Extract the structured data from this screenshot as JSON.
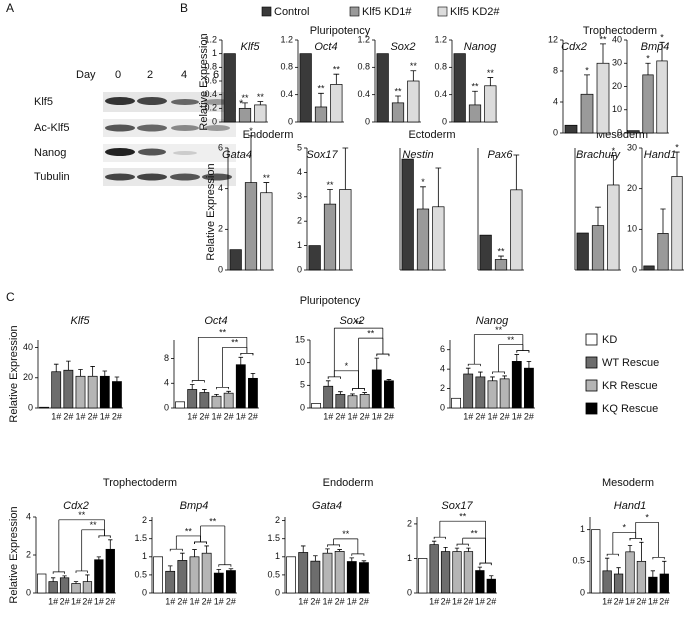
{
  "panel_letters": [
    "A",
    "B",
    "C"
  ],
  "western_blot": {
    "day_label": "Day",
    "days": [
      "0",
      "2",
      "4",
      "6"
    ],
    "rows": [
      "Klf5",
      "Ac-Klf5",
      "Nanog",
      "Tubulin"
    ],
    "star": "*"
  },
  "panel_b": {
    "headings": [
      "Pluripotency",
      "Trophectoderm",
      "Endoderm",
      "Ectoderm",
      "Mesoderm"
    ],
    "ylabel": "Relative Expression",
    "legend": [
      {
        "name": "Control",
        "color": "#3a3a3a"
      },
      {
        "name": "Klf5 KD1#",
        "color": "#9a9a9a"
      },
      {
        "name": "Klf5 KD2#",
        "color": "#dcdcdc"
      }
    ]
  },
  "panel_c": {
    "headings": [
      "Pluripotency",
      "Trophectoderm",
      "Endoderm",
      "Mesoderm"
    ],
    "ylabel": "Relative Expression",
    "legend": [
      {
        "name": "KD",
        "color": "#ffffff"
      },
      {
        "name": "WT Rescue",
        "color": "#6d6d6d"
      },
      {
        "name": "KR Rescue",
        "color": "#b5b5b5"
      },
      {
        "name": "KQ Rescue",
        "color": "#000000"
      }
    ]
  },
  "chart_data": [
    {
      "type": "bar",
      "title": "Klf5",
      "values": [
        1,
        0.2,
        0.25
      ],
      "errors": [
        0,
        0.08,
        0.05
      ],
      "significance": [
        null,
        "**",
        "**"
      ],
      "colors": [
        "#3a3a3a",
        "#9a9a9a",
        "#dcdcdc"
      ],
      "ylim": [
        0,
        1.2
      ],
      "yticks": [
        0,
        0.2,
        0.4,
        0.6,
        0.8,
        1,
        1.2
      ]
    },
    {
      "type": "bar",
      "title": "Oct4",
      "values": [
        1,
        0.22,
        0.55
      ],
      "errors": [
        0,
        0.2,
        0.15
      ],
      "significance": [
        null,
        "**",
        "**"
      ],
      "colors": [
        "#3a3a3a",
        "#9a9a9a",
        "#dcdcdc"
      ],
      "ylim": [
        0,
        1.2
      ],
      "yticks": [
        0,
        0.4,
        0.8,
        1.2
      ]
    },
    {
      "type": "bar",
      "title": "Sox2",
      "values": [
        1,
        0.28,
        0.6
      ],
      "errors": [
        0,
        0.1,
        0.15
      ],
      "significance": [
        null,
        "**",
        "**"
      ],
      "colors": [
        "#3a3a3a",
        "#9a9a9a",
        "#dcdcdc"
      ],
      "ylim": [
        0,
        1.2
      ],
      "yticks": [
        0,
        0.4,
        0.8,
        1.2
      ]
    },
    {
      "type": "bar",
      "title": "Nanog",
      "values": [
        1,
        0.25,
        0.53
      ],
      "errors": [
        0,
        0.2,
        0.12
      ],
      "significance": [
        null,
        "**",
        "**"
      ],
      "colors": [
        "#3a3a3a",
        "#9a9a9a",
        "#dcdcdc"
      ],
      "ylim": [
        0,
        1.2
      ],
      "yticks": [
        0,
        0.4,
        0.8,
        1.2
      ]
    },
    {
      "type": "bar",
      "title": "Cdx2",
      "values": [
        1,
        5,
        9
      ],
      "errors": [
        0,
        2.5,
        2.5
      ],
      "significance": [
        null,
        "*",
        "**"
      ],
      "colors": [
        "#3a3a3a",
        "#9a9a9a",
        "#dcdcdc"
      ],
      "ylim": [
        0,
        12
      ],
      "yticks": [
        0,
        4,
        8,
        12
      ]
    },
    {
      "type": "bar",
      "title": "Bmp4",
      "values": [
        1,
        25,
        31
      ],
      "errors": [
        0,
        5,
        8
      ],
      "significance": [
        null,
        "*",
        "*"
      ],
      "colors": [
        "#3a3a3a",
        "#9a9a9a",
        "#dcdcdc"
      ],
      "ylim": [
        0,
        40
      ],
      "yticks": [
        0,
        10,
        20,
        30,
        40
      ]
    },
    {
      "type": "bar",
      "title": "Gata4",
      "values": [
        1,
        4.3,
        3.8
      ],
      "errors": [
        0,
        2.3,
        0.5
      ],
      "significance": [
        null,
        "*",
        "**"
      ],
      "colors": [
        "#3a3a3a",
        "#9a9a9a",
        "#dcdcdc"
      ],
      "ylim": [
        0,
        6
      ],
      "yticks": [
        0,
        2,
        4,
        6
      ]
    },
    {
      "type": "bar",
      "title": "Sox17",
      "values": [
        1,
        2.7,
        3.3
      ],
      "errors": [
        0,
        0.6,
        1.7
      ],
      "significance": [
        null,
        "**",
        null
      ],
      "colors": [
        "#3a3a3a",
        "#9a9a9a",
        "#dcdcdc"
      ],
      "ylim": [
        0,
        5
      ],
      "yticks": [
        0,
        1,
        2,
        3,
        4,
        5
      ]
    },
    {
      "type": "bar",
      "title": "Nestin",
      "values": [
        1,
        0.55,
        0.57
      ],
      "errors": [
        0,
        0.2,
        0.35
      ],
      "significance": [
        null,
        "*",
        null
      ],
      "colors": [
        "#3a3a3a",
        "#9a9a9a",
        "#dcdcdc"
      ],
      "ylim": [
        0,
        1.1
      ]
    },
    {
      "type": "bar",
      "title": "Pax6",
      "values": [
        1,
        0.3,
        2.3
      ],
      "errors": [
        0,
        0.1,
        1
      ],
      "significance": [
        null,
        "**",
        null
      ],
      "colors": [
        "#3a3a3a",
        "#9a9a9a",
        "#dcdcdc"
      ],
      "ylim": [
        0,
        3.5
      ]
    },
    {
      "type": "bar",
      "title": "Brachury",
      "values": [
        1,
        1.2,
        2.3
      ],
      "errors": [
        0,
        0.5,
        0.8
      ],
      "significance": [
        null,
        null,
        "*"
      ],
      "colors": [
        "#3a3a3a",
        "#9a9a9a",
        "#dcdcdc"
      ],
      "ylim": [
        0,
        3.3
      ]
    },
    {
      "type": "bar",
      "title": "Hand1",
      "values": [
        1,
        9,
        23
      ],
      "errors": [
        0,
        6,
        6
      ],
      "significance": [
        null,
        null,
        "*"
      ],
      "colors": [
        "#3a3a3a",
        "#9a9a9a",
        "#dcdcdc"
      ],
      "ylim": [
        0,
        30
      ],
      "yticks": [
        0,
        10,
        20,
        30
      ]
    },
    {
      "type": "bar",
      "title": "Klf5",
      "categories": [
        null,
        "1#",
        "2#",
        "1#",
        "2#",
        "1#",
        "2#"
      ],
      "values": [
        0.5,
        24,
        25,
        21,
        21,
        21,
        17.5
      ],
      "errors": [
        0,
        5,
        6,
        4.5,
        6.5,
        3.5,
        3
      ],
      "colors": [
        "#ffffff",
        "#6d6d6d",
        "#6d6d6d",
        "#b5b5b5",
        "#b5b5b5",
        "#000000",
        "#000000"
      ],
      "ylim": [
        0,
        45
      ],
      "yticks": [
        0,
        20,
        40
      ]
    },
    {
      "type": "bar",
      "title": "Oct4",
      "categories": [
        null,
        "1#",
        "2#",
        "1#",
        "2#",
        "1#",
        "2#"
      ],
      "values": [
        1,
        3,
        2.5,
        1.9,
        2.4,
        7,
        4.8
      ],
      "errors": [
        0,
        0.8,
        0.5,
        0.3,
        0.3,
        1.2,
        0.8
      ],
      "colors": [
        "#ffffff",
        "#6d6d6d",
        "#6d6d6d",
        "#b5b5b5",
        "#b5b5b5",
        "#000000",
        "#000000"
      ],
      "ylim": [
        0,
        11
      ],
      "yticks": [
        0,
        4,
        8
      ],
      "brackets": [
        {
          "groups": [
            2,
            3
          ],
          "label": "**"
        },
        {
          "groups": [
            1,
            3
          ],
          "label": "**"
        }
      ]
    },
    {
      "type": "bar",
      "title": "Sox2",
      "categories": [
        null,
        "1#",
        "2#",
        "1#",
        "2#",
        "1#",
        "2#"
      ],
      "values": [
        1,
        4.8,
        3,
        2.7,
        3,
        8.4,
        6
      ],
      "errors": [
        0,
        1.2,
        0.6,
        0.4,
        0.4,
        2.6,
        0.3
      ],
      "colors": [
        "#ffffff",
        "#6d6d6d",
        "#6d6d6d",
        "#b5b5b5",
        "#b5b5b5",
        "#000000",
        "#000000"
      ],
      "ylim": [
        0,
        15
      ],
      "yticks": [
        0,
        5,
        10,
        15
      ],
      "brackets": [
        {
          "groups": [
            1,
            2
          ],
          "label": "*"
        },
        {
          "groups": [
            2,
            3
          ],
          "label": "**"
        },
        {
          "groups": [
            1,
            3
          ],
          "label": "**"
        }
      ]
    },
    {
      "type": "bar",
      "title": "Nanog",
      "categories": [
        null,
        "1#",
        "2#",
        "1#",
        "2#",
        "1#",
        "2#"
      ],
      "values": [
        1,
        3.5,
        3.2,
        2.8,
        3,
        4.8,
        4.1
      ],
      "errors": [
        0,
        0.6,
        0.5,
        0.4,
        0.3,
        0.7,
        0.7
      ],
      "colors": [
        "#ffffff",
        "#6d6d6d",
        "#6d6d6d",
        "#b5b5b5",
        "#b5b5b5",
        "#000000",
        "#000000"
      ],
      "ylim": [
        0,
        7
      ],
      "yticks": [
        0,
        2,
        4,
        6
      ],
      "brackets": [
        {
          "groups": [
            2,
            3
          ],
          "label": "**"
        },
        {
          "groups": [
            1,
            3
          ],
          "label": "**"
        }
      ]
    },
    {
      "type": "bar",
      "title": "Cdx2",
      "categories": [
        null,
        "1#",
        "2#",
        "1#",
        "2#",
        "1#",
        "2#"
      ],
      "values": [
        1,
        0.6,
        0.8,
        0.5,
        0.6,
        1.75,
        2.3
      ],
      "errors": [
        0,
        0.2,
        0.1,
        0.1,
        0.35,
        0.15,
        0.5
      ],
      "colors": [
        "#ffffff",
        "#6d6d6d",
        "#6d6d6d",
        "#b5b5b5",
        "#b5b5b5",
        "#000000",
        "#000000"
      ],
      "ylim": [
        0,
        4
      ],
      "yticks": [
        0,
        2,
        4
      ],
      "brackets": [
        {
          "groups": [
            2,
            3
          ],
          "label": "**"
        },
        {
          "groups": [
            1,
            3
          ],
          "label": "**"
        }
      ]
    },
    {
      "type": "bar",
      "title": "Bmp4",
      "categories": [
        null,
        "1#",
        "2#",
        "1#",
        "2#",
        "1#",
        "2#"
      ],
      "values": [
        1,
        0.6,
        0.9,
        1,
        1.1,
        0.55,
        0.62
      ],
      "errors": [
        0,
        0.15,
        0.2,
        0.2,
        0.2,
        0.1,
        0.05
      ],
      "colors": [
        "#ffffff",
        "#6d6d6d",
        "#6d6d6d",
        "#b5b5b5",
        "#b5b5b5",
        "#000000",
        "#000000"
      ],
      "ylim": [
        0,
        2.1
      ],
      "yticks": [
        0,
        0.5,
        1,
        1.5,
        2
      ],
      "brackets": [
        {
          "groups": [
            1,
            2
          ],
          "label": "**"
        },
        {
          "groups": [
            2,
            3
          ],
          "label": "**"
        }
      ]
    },
    {
      "type": "bar",
      "title": "Gata4",
      "categories": [
        null,
        "1#",
        "2#",
        "1#",
        "2#",
        "1#",
        "2#"
      ],
      "values": [
        1,
        1.12,
        0.88,
        1.1,
        1.15,
        0.87,
        0.84
      ],
      "errors": [
        0,
        0.18,
        0.15,
        0.12,
        0.05,
        0.1,
        0.05
      ],
      "colors": [
        "#ffffff",
        "#6d6d6d",
        "#6d6d6d",
        "#b5b5b5",
        "#b5b5b5",
        "#000000",
        "#000000"
      ],
      "ylim": [
        0,
        2.1
      ],
      "yticks": [
        0,
        0.5,
        1,
        1.5,
        2
      ],
      "brackets": [
        {
          "groups": [
            2,
            3
          ],
          "label": "**"
        }
      ]
    },
    {
      "type": "bar",
      "title": "Sox17",
      "categories": [
        null,
        "1#",
        "2#",
        "1#",
        "2#",
        "1#",
        "2#"
      ],
      "values": [
        1,
        1.4,
        1.2,
        1.2,
        1.2,
        0.65,
        0.4
      ],
      "errors": [
        0,
        0.1,
        0.12,
        0.1,
        0.1,
        0.1,
        0.1
      ],
      "colors": [
        "#ffffff",
        "#6d6d6d",
        "#6d6d6d",
        "#b5b5b5",
        "#b5b5b5",
        "#000000",
        "#000000"
      ],
      "ylim": [
        0,
        2.2
      ],
      "yticks": [
        0,
        1,
        2
      ],
      "brackets": [
        {
          "groups": [
            2,
            3
          ],
          "label": "**"
        },
        {
          "groups": [
            1,
            3
          ],
          "label": "**"
        }
      ]
    },
    {
      "type": "bar",
      "title": "Hand1",
      "categories": [
        null,
        "1#",
        "2#",
        "1#",
        "2#",
        "1#",
        "2#"
      ],
      "values": [
        1,
        0.35,
        0.3,
        0.65,
        0.5,
        0.25,
        0.3
      ],
      "errors": [
        0,
        0.2,
        0.1,
        0.1,
        0.3,
        0.1,
        0.2
      ],
      "colors": [
        "#ffffff",
        "#6d6d6d",
        "#6d6d6d",
        "#b5b5b5",
        "#b5b5b5",
        "#000000",
        "#000000"
      ],
      "ylim": [
        0,
        1.2
      ],
      "yticks": [
        0,
        0.5,
        1
      ],
      "brackets": [
        {
          "groups": [
            1,
            2
          ],
          "label": "*"
        },
        {
          "groups": [
            2,
            3
          ],
          "label": "*"
        }
      ]
    }
  ]
}
